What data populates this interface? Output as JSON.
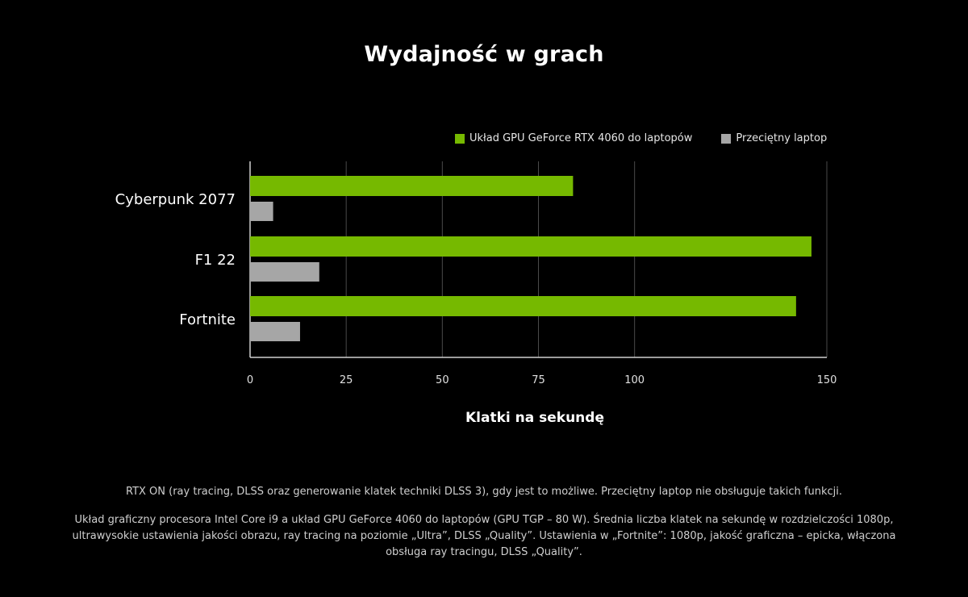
{
  "chart_data": {
    "type": "bar",
    "orientation": "horizontal",
    "title": "Wydajność w grach",
    "xlabel": "Klatki na sekundę",
    "ylabel": "",
    "categories": [
      "Cyberpunk 2077",
      "F1 22",
      "Fortnite"
    ],
    "series": [
      {
        "name": "Układ GPU GeForce RTX 4060 do laptopów",
        "color": "#76b900",
        "values": [
          84,
          146,
          142
        ]
      },
      {
        "name": "Przeciętny laptop",
        "color": "#a6a6a6",
        "values": [
          6,
          18,
          13
        ]
      }
    ],
    "xlim": [
      0,
      150
    ],
    "xticks": [
      0,
      25,
      50,
      75,
      100,
      150
    ],
    "grid": true,
    "legend_position": "top-right"
  },
  "notes": [
    "RTX ON (ray tracing, DLSS oraz generowanie klatek techniki DLSS 3), gdy jest to możliwe. Przeciętny laptop nie obsługuje takich funkcji.",
    "Układ graficzny procesora Intel Core i9 a układ GPU GeForce 4060 do laptopów (GPU TGP – 80 W). Średnia liczba klatek na sekundę w rozdzielczości 1080p, ultrawysokie ustawienia jakości obrazu, ray tracing na poziomie „Ultra”, DLSS „Quality”. Ustawienia w „Fortnite”: 1080p, jakość graficzna – epicka, włączona obsługa ray tracingu, DLSS „Quality”."
  ]
}
